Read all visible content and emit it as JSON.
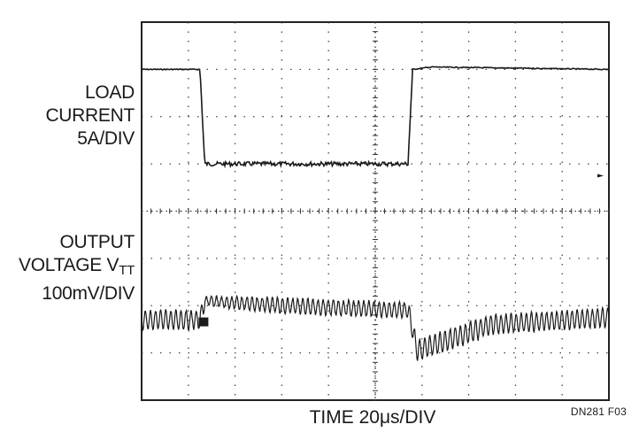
{
  "chart_data": {
    "type": "line",
    "title": "",
    "xlabel": "TIME 20μs/DIV",
    "figure_code": "DN281 F03",
    "grid": true,
    "grid_divisions": {
      "x": 10,
      "y": 8
    },
    "x_range_div": [
      0,
      10
    ],
    "series": [
      {
        "name": "LOAD CURRENT",
        "label_lines": [
          "LOAD",
          "CURRENT",
          "5A/DIV"
        ],
        "scale": "5A/DIV",
        "description_points_div": [
          [
            0,
            1.0
          ],
          [
            1.25,
            1.0
          ],
          [
            1.35,
            3.0
          ],
          [
            5.7,
            3.0
          ],
          [
            5.8,
            1.0
          ],
          [
            6.2,
            0.95
          ],
          [
            10,
            1.0
          ]
        ]
      },
      {
        "name": "OUTPUT VOLTAGE VTT",
        "label_lines": [
          "OUTPUT",
          "VOLTAGE V",
          "TT",
          "100mV/DIV"
        ],
        "scale": "100mV/DIV",
        "description_points_div": [
          [
            0,
            6.3
          ],
          [
            1.25,
            6.3
          ],
          [
            1.35,
            5.9
          ],
          [
            3.0,
            6.0
          ],
          [
            5.7,
            6.1
          ],
          [
            5.9,
            6.95
          ],
          [
            7.5,
            6.4
          ],
          [
            10,
            6.25
          ]
        ]
      }
    ]
  }
}
